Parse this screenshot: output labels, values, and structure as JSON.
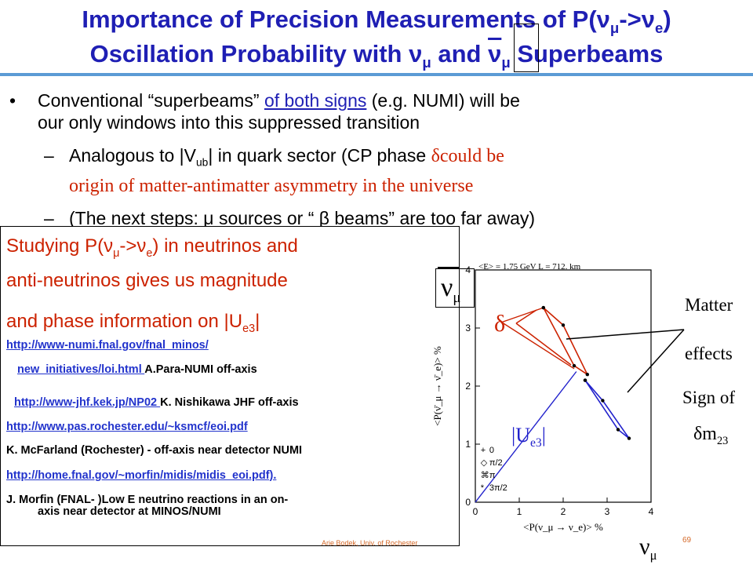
{
  "title": {
    "line1": "Importance of Precision Measurements of P(ν",
    "line1_sub1": "μ",
    "line1_mid": "->ν",
    "line1_sub2": "e",
    "line1_end": ")",
    "line2a": "Oscillation Probability with  ν",
    "line2_sub1": "μ",
    "line2b": " and ",
    "line2c": "ν",
    "line2_sub2": "μ",
    "line2d": " Superbeams"
  },
  "bullets": {
    "b1_pre": "Conventional “superbeams” ",
    "b1_link": "of both signs",
    "b1_post": " (e.g. NUMI) will be",
    "b1_line2": "our only windows into this suppressed transition",
    "b2_pre": "Analogous to |V",
    "b2_sub": "ub",
    "b2_mid": "| in quark sector  (CP phase ",
    "b2_red1": "δcould be",
    "b2_red2": "origin of matter-antimatter asymmetry  in the universe",
    "b3": "(The next steps:  μ  sources or “ β  beams” are  too far away)",
    "dash": "–",
    "dot": "•"
  },
  "box": {
    "l1_pre": "Studying P(ν",
    "l1_sub1": "μ",
    "l1_mid": "->ν",
    "l1_sub2": "e",
    "l1_post": ")  in neutrinos and",
    "l2": "anti-neutrinos gives us magnitude",
    "l3_pre": "and phase information on |U",
    "l3_sub": "e3",
    "l3_post": "|",
    "link1": "http://www-numi.fnal.gov/fnal_minos/",
    "link2": "new_initiatives/loi.html ",
    "text2": " A.Para-NUMI off-axis",
    "link3": "http://www-jhf.kek.jp/NP02 ",
    "text3": " K. Nishikawa JHF off-axis",
    "link4": "http://www.pas.rochester.edu/~ksmcf/eoi.pdf",
    "text4": "K. McFarland (Rochester) -  off-axis near detector NUMI",
    "link5": "http://home.fnal.gov/~morfin/midis/midis_eoi.pdf).",
    "text5a": "J. Morfin (FNAL- )Low E neutrino reactions in an on-",
    "text5b": "axis near detector at MINOS/NUMI"
  },
  "footer": {
    "author": "Arie Bodek, Univ. of Rochester",
    "page": "69"
  },
  "annotations": {
    "nubar": "ν",
    "nubar_sub": "μ",
    "delta": "δ",
    "ue3": "|U",
    "ue3_sub": "e3",
    "ue3_end": "|",
    "matter": "Matter",
    "effects": "effects",
    "signof": "Sign of",
    "dm": "δm",
    "dm_sub": "23",
    "nu_bottom": "ν",
    "nu_bottom_sub": "μ"
  },
  "chart_data": {
    "type": "scatter",
    "header": "<E> = 1.75  GeV    L = 712. km",
    "xlabel": "<P(ν_μ → ν_e)> %",
    "ylabel": "<P(ν̄_μ → ν̄_e)> %",
    "xlim": [
      0,
      4
    ],
    "ylim": [
      0,
      4
    ],
    "x_ticks": [
      "0",
      "1",
      "2",
      "3",
      "4"
    ],
    "y_ticks": [
      "0",
      "1",
      "2",
      "3",
      "4"
    ],
    "legend": [
      "0",
      "π/2",
      "π",
      "3π/2"
    ],
    "legend_markers": [
      "+",
      "◇",
      "⌘",
      "*"
    ],
    "series": [
      {
        "name": "upper ellipse",
        "color": "#cc2200",
        "x": [
          1.55,
          2.25,
          2.55,
          2.0,
          1.55
        ],
        "y": [
          3.35,
          2.35,
          2.2,
          3.05,
          3.35
        ]
      },
      {
        "name": "lower ellipse",
        "color": "#2222cc",
        "x": [
          2.5,
          3.25,
          3.5,
          2.9,
          2.5
        ],
        "y": [
          2.1,
          1.25,
          1.1,
          1.75,
          2.1
        ]
      }
    ],
    "lines": [
      {
        "name": "|Ue3| line",
        "color": "#2222cc",
        "x": [
          0,
          2.3
        ],
        "y": [
          0,
          2.25
        ]
      },
      {
        "name": "delta red 1",
        "color": "#cc2200",
        "x": [
          0.6,
          2.25
        ],
        "y": [
          3.1,
          2.3
        ]
      },
      {
        "name": "delta red 2",
        "color": "#cc2200",
        "x": [
          0.6,
          1.55
        ],
        "y": [
          3.1,
          3.35
        ]
      }
    ]
  }
}
